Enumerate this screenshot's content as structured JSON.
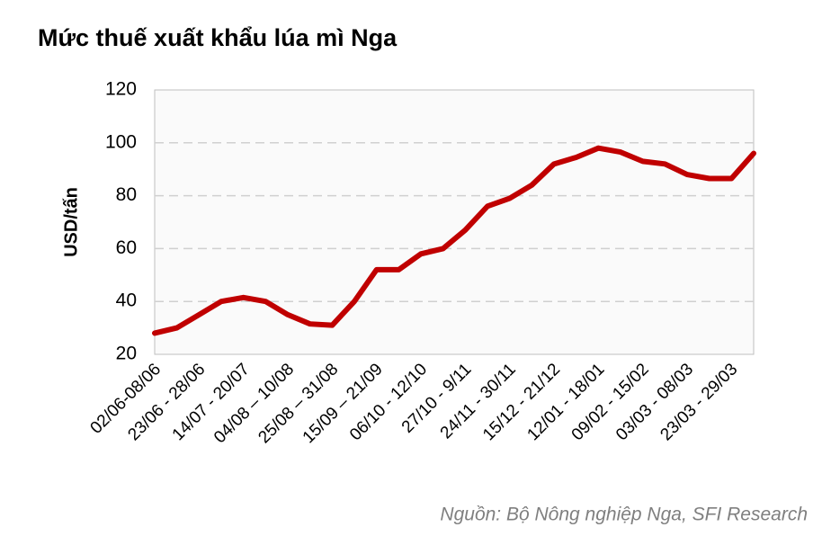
{
  "chart_data": {
    "type": "line",
    "title": "Mức thuế xuất khẩu lúa mì Nga",
    "y_label": "USD/tấn",
    "source": "Nguồn: Bộ Nông nghiệp Nga, SFI Research",
    "categories": [
      "02/06-08/06",
      null,
      "23/06 - 28/06",
      null,
      "14/07 - 20/07",
      null,
      "04/08 – 10/08",
      null,
      "25/08 – 31/08",
      null,
      "15/09 – 21/09",
      null,
      "06/10 - 12/10",
      null,
      "27/10 - 9/11",
      null,
      "24/11 - 30/11",
      null,
      "15/12 - 21/12",
      null,
      "12/01 - 18/01",
      null,
      "09/02 - 15/02",
      null,
      "03/03 - 08/03",
      null,
      "23/03 - 29/03",
      null
    ],
    "series": [
      {
        "name": "Mức thuế",
        "color": "#c00000",
        "values": [
          28,
          30,
          35,
          40,
          41.5,
          40,
          35,
          31.5,
          31,
          40,
          52,
          52,
          58,
          60,
          67,
          76,
          79,
          84,
          92,
          94.5,
          98,
          96.5,
          93,
          92,
          88,
          86.5,
          86.5,
          96
        ]
      }
    ],
    "ylim": [
      20,
      120
    ],
    "yticks": [
      20,
      40,
      60,
      80,
      100,
      120
    ],
    "grid": true
  }
}
